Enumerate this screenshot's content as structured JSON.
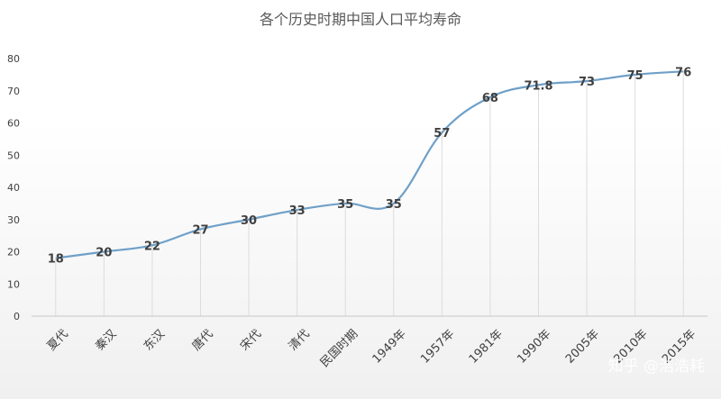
{
  "chart_data": {
    "type": "line",
    "title": "各个历史时期中国人口平均寿命",
    "categories": [
      "夏代",
      "秦汉",
      "东汉",
      "唐代",
      "宋代",
      "清代",
      "民国时期",
      "1949年",
      "1957年",
      "1981年",
      "1990年",
      "2005年",
      "2010年",
      "2015年"
    ],
    "series": [
      {
        "values": [
          18,
          20,
          22,
          27,
          30,
          33,
          35,
          35,
          57,
          68,
          71.8,
          73,
          75,
          76
        ]
      }
    ],
    "data_labels": [
      "18",
      "20",
      "22",
      "27",
      "30",
      "33",
      "35",
      "35",
      "57",
      "68",
      "71.8",
      "73",
      "75",
      "76"
    ],
    "ylim": [
      0,
      80
    ],
    "yticks": [
      "0",
      "10",
      "20",
      "30",
      "40",
      "50",
      "60",
      "70",
      "80"
    ],
    "xlabel": "",
    "ylabel": "",
    "grid": "vertical drop lines",
    "line_color": "#6fa0c8"
  },
  "watermark": "知乎 @浩浩耗"
}
